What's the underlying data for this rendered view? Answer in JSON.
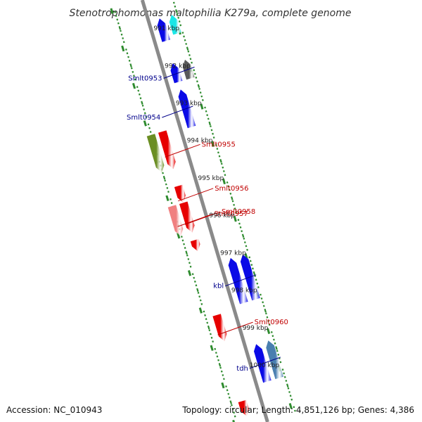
{
  "title": "Stenotrophomonas maltophilia K279a, complete genome",
  "accession_text": "Accession: NC_010943",
  "topology_text": "Topology: circular; Length: 4,851,126 bp; Genes: 4,386",
  "colors": {
    "backbone": "#8a8a8a",
    "tick": "#2e8b2e",
    "reverse_label": "#00008b",
    "forward_label": "#c00000",
    "blue": "#0a0ae6",
    "cyan": "#19e6e6",
    "gray": "#5a5a5a",
    "red": "#e60000",
    "olive": "#6b8e23",
    "pink": "#f08080",
    "steel": "#4a7fb0"
  },
  "chart_data": {
    "type": "linear-genome-map",
    "kbp_ticks": [
      {
        "label": "991 kbp",
        "kbp": 991
      },
      {
        "label": "992 kbp",
        "kbp": 992
      },
      {
        "label": "993 kbp",
        "kbp": 993
      },
      {
        "label": "994 kbp",
        "kbp": 994
      },
      {
        "label": "995 kbp",
        "kbp": 995
      },
      {
        "label": "996 kbp",
        "kbp": 996
      },
      {
        "label": "997 kbp",
        "kbp": 997
      },
      {
        "label": "998 kbp",
        "kbp": 998
      },
      {
        "label": "999 kbp",
        "kbp": 999
      },
      {
        "label": "1000 kbp",
        "kbp": 1000
      }
    ],
    "reverse_genes": [
      {
        "track": 2,
        "start_kbp": 990.6,
        "end_kbp": 991.1,
        "color": "cyan"
      },
      {
        "track": 1,
        "start_kbp": 990.6,
        "end_kbp": 991.2,
        "color": "blue"
      },
      {
        "track": 2,
        "start_kbp": 991.8,
        "end_kbp": 992.3,
        "color": "gray",
        "label": "Smlt0953"
      },
      {
        "track": 1,
        "start_kbp": 991.8,
        "end_kbp": 992.3,
        "color": "blue"
      },
      {
        "track": 1,
        "start_kbp": 992.5,
        "end_kbp": 993.5,
        "color": "blue",
        "label": "Smlt0954"
      },
      {
        "track": 2,
        "start_kbp": 997.0,
        "end_kbp": 998.2,
        "color": "blue",
        "label": "kbl"
      },
      {
        "track": 1,
        "start_kbp": 997.0,
        "end_kbp": 998.2,
        "color": "blue"
      },
      {
        "track": 2,
        "start_kbp": 999.3,
        "end_kbp": 1000.3,
        "color": "steel",
        "label": "tdh"
      },
      {
        "track": 1,
        "start_kbp": 999.3,
        "end_kbp": 1000.3,
        "color": "blue"
      }
    ],
    "forward_genes": [
      {
        "track": 1,
        "start_kbp": 993.4,
        "end_kbp": 994.4,
        "color": "red",
        "label": "Smlt0955"
      },
      {
        "track": 2,
        "start_kbp": 993.4,
        "end_kbp": 994.4,
        "color": "olive"
      },
      {
        "track": 1,
        "start_kbp": 994.85,
        "end_kbp": 995.3,
        "color": "red",
        "label": "Smlt0956"
      },
      {
        "track": 1,
        "start_kbp": 995.3,
        "end_kbp": 996.1,
        "color": "red",
        "label": "Smlt0958"
      },
      {
        "track": 2,
        "start_kbp": 995.3,
        "end_kbp": 996.1,
        "color": "pink",
        "label": "Smlt0957"
      },
      {
        "track": 1,
        "start_kbp": 996.3,
        "end_kbp": 996.6,
        "color": "red"
      },
      {
        "track": 1,
        "start_kbp": 998.3,
        "end_kbp": 999.0,
        "color": "red",
        "label": "Smlt0960"
      },
      {
        "track": 1,
        "start_kbp": 1000.6,
        "end_kbp": 1001.0,
        "color": "red"
      }
    ]
  }
}
